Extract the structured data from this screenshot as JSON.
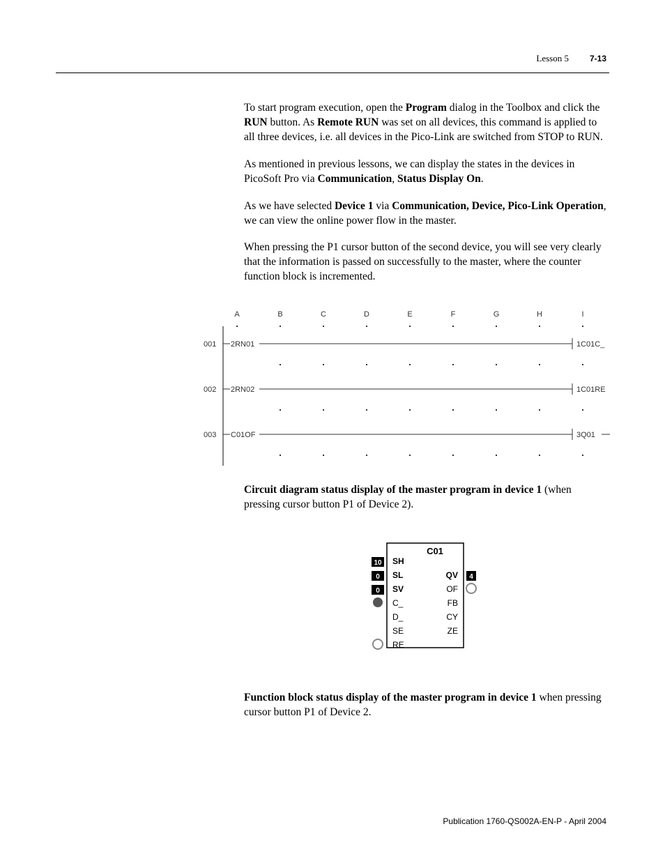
{
  "header": {
    "lesson": "Lesson 5",
    "page": "7-13"
  },
  "paragraphs": {
    "p1_a": "To start program execution, open the ",
    "p1_b": "Program",
    "p1_c": " dialog in the Toolbox and click the ",
    "p1_d": "RUN",
    "p1_e": " button. As ",
    "p1_f": "Remote RUN",
    "p1_g": " was set on all devices, this command is applied to all three devices, i.e. all devices in the Pico-Link are switched from STOP to RUN.",
    "p2_a": "As mentioned in previous lessons, we can display the states in the devices in PicoSoft Pro via ",
    "p2_b": "Communication",
    "p2_c": ", ",
    "p2_d": "Status Display On",
    "p2_e": ".",
    "p3_a": "As we have selected ",
    "p3_b": "Device 1",
    "p3_c": " via ",
    "p3_d": "Communication, Device, Pico-Link Operation",
    "p3_e": ", we can view the online power flow in the master.",
    "p4": "When pressing the P1 cursor button of the second device, you will see very clearly that the information is passed on successfully to the master, where the counter function block is incremented."
  },
  "ladder": {
    "columns": [
      "A",
      "B",
      "C",
      "D",
      "E",
      "F",
      "G",
      "H",
      "I"
    ],
    "rows": [
      {
        "num": "001",
        "left_label": "2RN01",
        "right_label": "1C01C_"
      },
      {
        "num": "002",
        "left_label": "2RN02",
        "right_label": "1C01RE"
      },
      {
        "num": "003",
        "left_label": "C01OF",
        "right_label": "3Q01"
      }
    ],
    "colors": {
      "line": "#333333",
      "text": "#333333",
      "dot": "#333333"
    }
  },
  "caption1_a": "Circuit diagram status display of the master program in device 1",
  "caption1_b": " (when pressing cursor button P1 of Device 2).",
  "fblock": {
    "title": "C01",
    "left_inputs": [
      "SH",
      "SL",
      "SV",
      "C_",
      "D_",
      "SE",
      "RE"
    ],
    "right_outputs": [
      "QV",
      "OF",
      "FB",
      "CY",
      "ZE"
    ],
    "left_badges": [
      "10",
      "0",
      "0"
    ],
    "right_badges": [
      "4"
    ],
    "colors": {
      "border": "#000000",
      "badge_bg": "#000000",
      "badge_fg": "#ffffff",
      "dot_dark": "#555555",
      "dot_light": "#aaaaaa",
      "text": "#000000"
    }
  },
  "caption2_a": "Function block status display of the master program in device 1",
  "caption2_b": " when pressing cursor button P1 of Device 2.",
  "footer": "Publication 1760-QS002A-EN-P - April 2004"
}
